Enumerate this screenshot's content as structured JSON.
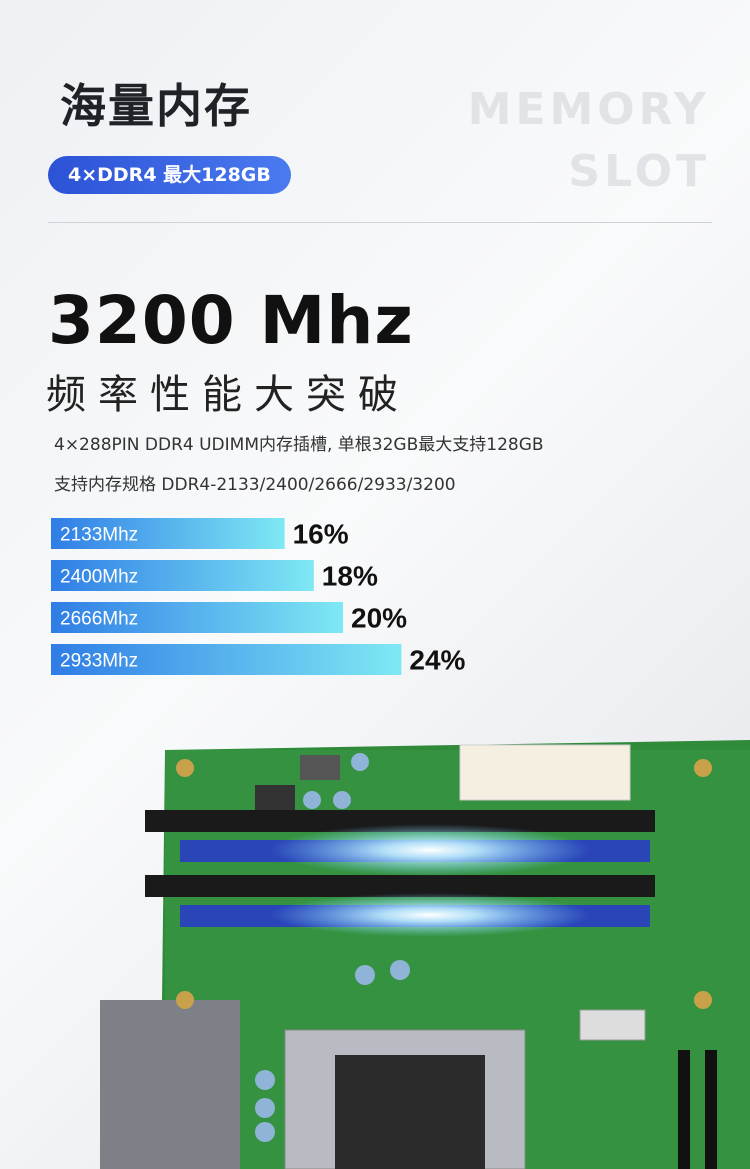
{
  "header": {
    "title": "海量内存",
    "badge": "4×DDR4 最大128GB",
    "watermark": [
      "MEMORY",
      "SLOT"
    ]
  },
  "headline": {
    "speed": "3200 Mhz",
    "slogan": "频率性能大突破"
  },
  "specs": [
    "4×288PIN DDR4 UDIMM内存插槽, 单根32GB最大支持128GB",
    "支持内存规格 DDR4-2133/2400/2666/2933/3200"
  ],
  "chart_data": {
    "type": "bar",
    "orientation": "horizontal",
    "categories": [
      "2133Mhz",
      "2400Mhz",
      "2666Mhz",
      "2933Mhz"
    ],
    "values": [
      16,
      18,
      20,
      24
    ],
    "value_labels": [
      "16%",
      "18%",
      "20%",
      "24%"
    ],
    "color": [
      "#2f7de6",
      "#7fe8f4"
    ]
  }
}
